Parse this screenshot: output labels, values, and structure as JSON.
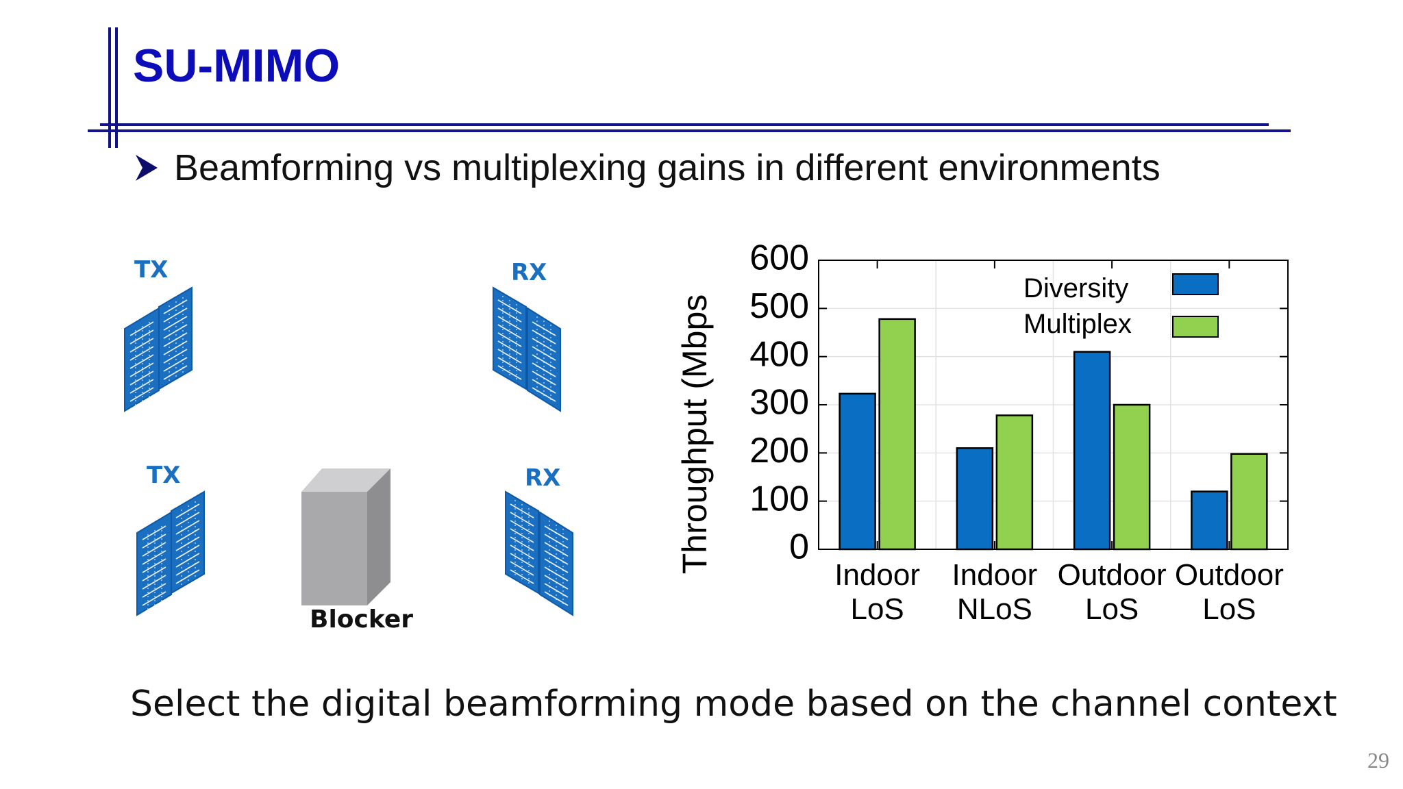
{
  "slide": {
    "title": "SU-MIMO",
    "bullet": "Beamforming vs multiplexing gains in different environments",
    "conclusion": "Select the digital beamforming mode based on the channel context",
    "page_number": "29"
  },
  "diagram": {
    "top_tx_label": "TX",
    "top_rx_label": "RX",
    "bottom_tx_label": "TX",
    "bottom_rx_label": "RX",
    "blocker_label": "Blocker"
  },
  "colors": {
    "title": "#0c0cb8",
    "rule": "#12128a",
    "antenna": "#1a6fc0",
    "diversity": "#0a6fc2",
    "multiplex": "#92d050"
  },
  "chart_data": {
    "type": "bar",
    "ylabel": "Throughput (Mbps",
    "ylim": [
      0,
      600
    ],
    "yticks": [
      0,
      100,
      200,
      300,
      400,
      500,
      600
    ],
    "grid": true,
    "legend_position": "top-right",
    "categories": [
      {
        "line1": "Indoor",
        "line2": "LoS"
      },
      {
        "line1": "Indoor",
        "line2": "NLoS"
      },
      {
        "line1": "Outdoor",
        "line2": "LoS"
      },
      {
        "line1": "Outdoor",
        "line2": "LoS"
      }
    ],
    "series": [
      {
        "name": "Diversity",
        "color": "#0a6fc2",
        "values": [
          323,
          210,
          410,
          120
        ]
      },
      {
        "name": "Multiplex",
        "color": "#92d050",
        "values": [
          478,
          278,
          300,
          198
        ]
      }
    ]
  }
}
